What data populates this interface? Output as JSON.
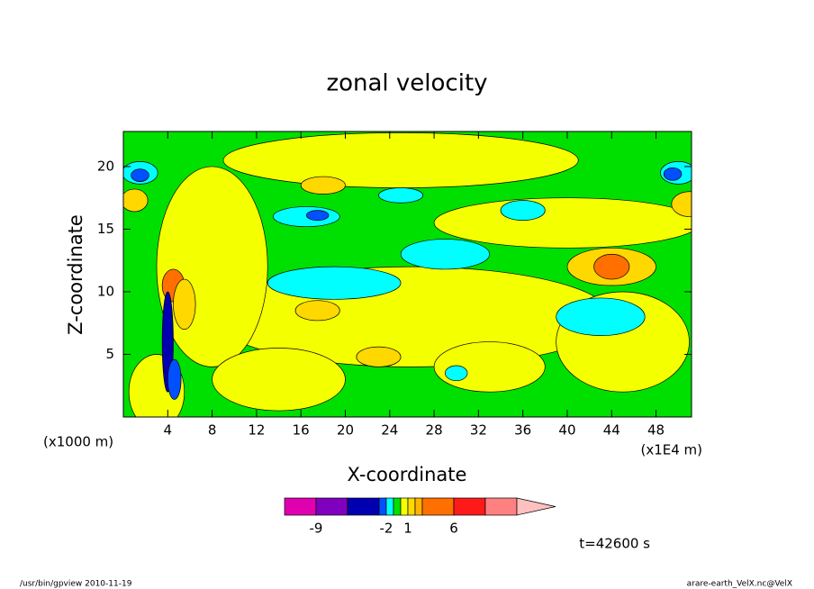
{
  "chart_data": {
    "type": "contour",
    "title": "zonal velocity",
    "xlabel": "X-coordinate",
    "ylabel": "Z-coordinate",
    "x_unit": "(x1E4 m)",
    "y_unit": "(x1000 m)",
    "xlim": [
      0,
      51.2
    ],
    "xticks": [
      4,
      8,
      12,
      16,
      20,
      24,
      28,
      32,
      36,
      40,
      44,
      48
    ],
    "ylim": [
      0,
      22.8
    ],
    "yticks": [
      5,
      10,
      15,
      20
    ],
    "colorbar": {
      "levels": [
        -12,
        -9,
        -6,
        -3,
        -2,
        -1,
        0,
        1,
        2,
        3,
        6,
        9,
        12
      ],
      "colors": [
        "#e000b0",
        "#8000c0",
        "#0000b0",
        "#0050ff",
        "#00ffff",
        "#00e000",
        "#f4ff00",
        "#ffd800",
        "#ffb400",
        "#ff7000",
        "#ff1a1a",
        "#ff8080"
      ],
      "extend_color": "#ffc0c0",
      "ticks": [
        -9,
        -2,
        1,
        6
      ]
    },
    "time_label": "t=42600 s",
    "footer_left": "/usr/bin/gpview  2010-11-19",
    "footer_right": "arare-earth_VelX.nc@VelX"
  }
}
